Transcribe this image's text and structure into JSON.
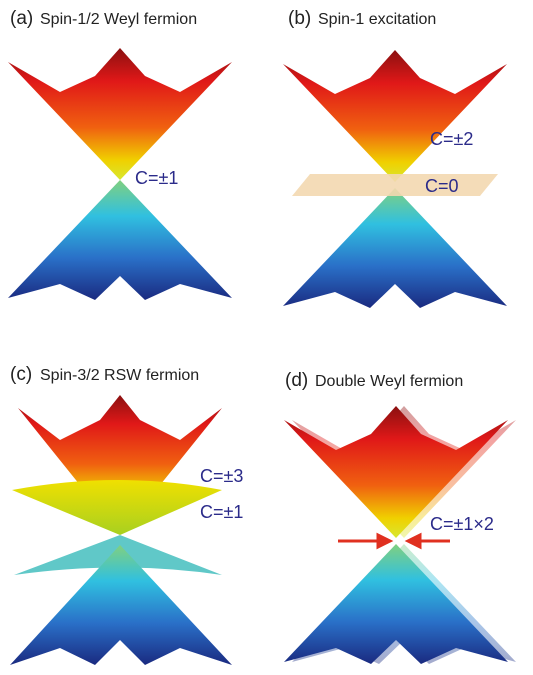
{
  "panels": [
    {
      "label": "(a)",
      "title": "Spin-1/2 Weyl fermion",
      "annotations": [
        "C=±1"
      ]
    },
    {
      "label": "(b)",
      "title": "Spin-1 excitation",
      "annotations": [
        "C=±2",
        "C=0"
      ]
    },
    {
      "label": "(c)",
      "title": "Spin-3/2 RSW fermion",
      "annotations": [
        "C=±3",
        "C=±1"
      ]
    },
    {
      "label": "(d)",
      "title": "Double Weyl fermion",
      "annotations": [
        "C=±1×2"
      ]
    }
  ]
}
